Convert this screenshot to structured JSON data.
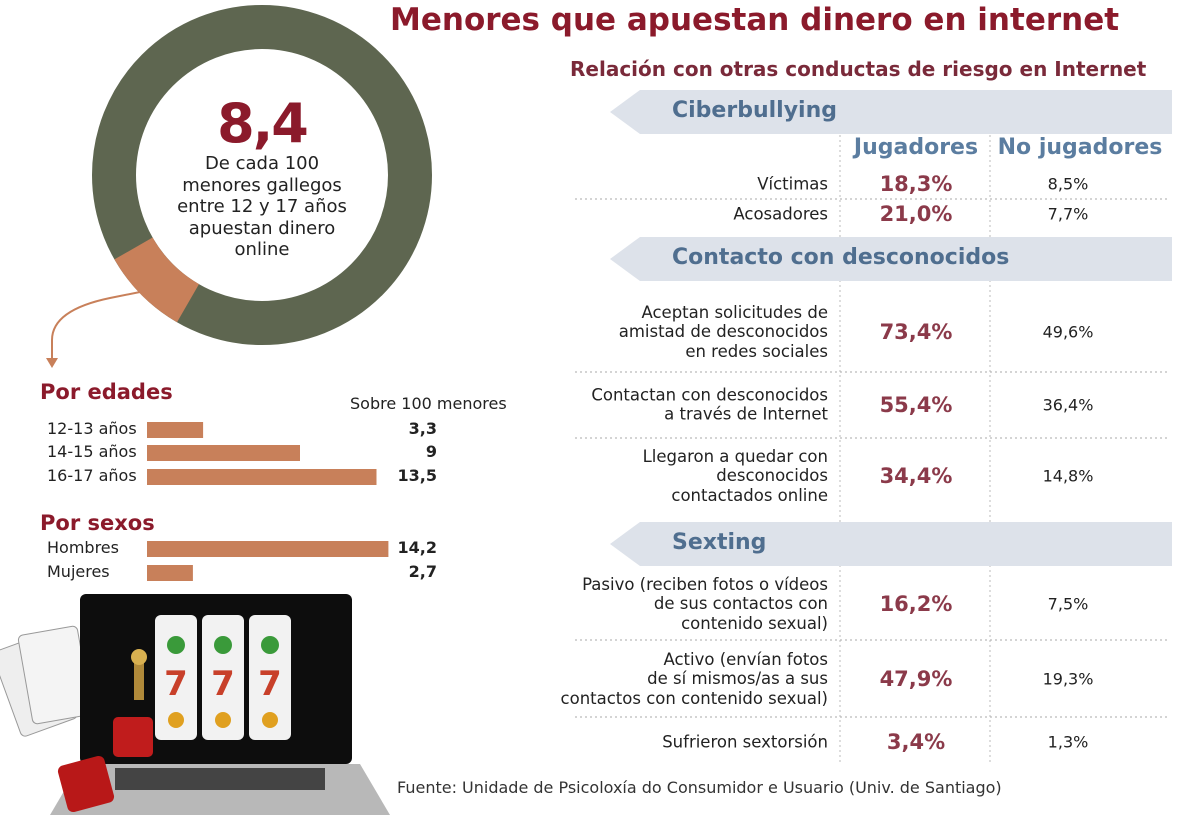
{
  "title": "Menores que apuestan dinero en internet",
  "chart_data": [
    {
      "type": "donut",
      "values": [
        8.4
      ],
      "value_labels": [
        "8,4"
      ],
      "ylim": [
        0,
        100
      ],
      "description": "De cada 100\nmenores gallegos\nentre 12 y 17 años\napuestan dinero\nonline",
      "color": "#c8805a",
      "track_color": "#5e6650"
    },
    {
      "type": "hbar",
      "title": "Por edades",
      "subtitle": "Sobre 100 menores",
      "categories": [
        "12-13 años",
        "14-15 años",
        "16-17 años"
      ],
      "values": [
        3.3,
        9,
        13.5
      ],
      "value_labels": [
        "3,3",
        "9",
        "13,5"
      ],
      "xlim": [
        0,
        15
      ],
      "color": "#c8805a"
    },
    {
      "type": "hbar",
      "title": "Por sexos",
      "categories": [
        "Hombres",
        "Mujeres"
      ],
      "values": [
        14.2,
        2.7
      ],
      "value_labels": [
        "14,2",
        "2,7"
      ],
      "xlim": [
        0,
        15
      ],
      "color": "#c8805a"
    }
  ],
  "table": {
    "title": "Relación con otras conductas de riesgo en Internet",
    "columns": [
      "Jugadores",
      "No jugadores"
    ],
    "sections": [
      {
        "title": "Ciberbullying",
        "rows": [
          {
            "label": "Víctimas",
            "cells": [
              "18,3%",
              "8,5%"
            ]
          },
          {
            "label": "Acosadores",
            "cells": [
              "21,0%",
              "7,7%"
            ]
          }
        ]
      },
      {
        "title": "Contacto con desconocidos",
        "rows": [
          {
            "label": "Aceptan solicitudes de\namistad de  desconocidos\nen redes sociales",
            "cells": [
              "73,4%",
              "49,6%"
            ]
          },
          {
            "label": "Contactan con desconocidos\na través de Internet",
            "cells": [
              "55,4%",
              "36,4%"
            ]
          },
          {
            "label": "Llegaron a quedar con\ndesconocidos\ncontactados online",
            "cells": [
              "34,4%",
              "14,8%"
            ]
          }
        ]
      },
      {
        "title": "Sexting",
        "rows": [
          {
            "label": "Pasivo (reciben fotos o vídeos\nde sus contactos con\ncontenido sexual)",
            "cells": [
              "16,2%",
              "7,5%"
            ]
          },
          {
            "label": "Activo (envían fotos\nde sí mismos/as a  sus\ncontactos con contenido sexual)",
            "cells": [
              "47,9%",
              "19,3%"
            ]
          },
          {
            "label": "Sufrieron sextorsión",
            "cells": [
              "3,4%",
              "1,3%"
            ]
          }
        ]
      }
    ]
  },
  "source": "Fuente: Unidade de Psicoloxía do Consumidor e Usuario (Univ. de Santiago)"
}
